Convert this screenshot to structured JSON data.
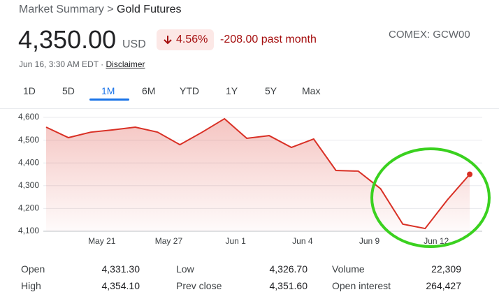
{
  "header": {
    "breadcrumb": [
      "Market Summary",
      ">",
      "Gold Futures"
    ],
    "price": "4,350.00",
    "currency": "USD",
    "change_percent": "4.56%",
    "change": "-208.00 past month",
    "exchange": "COMEX: GCW00",
    "timestamp": "Jun 16, 3:30 AM EDT ·",
    "disclaimer": "Disclaimer"
  },
  "tabs": {
    "items": [
      "1D",
      "5D",
      "1M",
      "6M",
      "YTD",
      "1Y",
      "5Y",
      "Max"
    ],
    "selected": 2
  },
  "chart_data": {
    "type": "line",
    "categories": [
      null,
      null,
      null,
      "May 21",
      null,
      null,
      "May 27",
      null,
      null,
      "Jun 1",
      null,
      null,
      "Jun 4",
      null,
      null,
      "Jun 9",
      null,
      null,
      "Jun 12",
      null
    ],
    "series": [
      {
        "color": "#d93025",
        "values": [
          4557,
          4511,
          4535,
          4545,
          4557,
          4535,
          4480,
          4535,
          4594,
          4508,
          4520,
          4468,
          4505,
          4367,
          4364,
          4287,
          4131,
          4112,
          4238,
          4350
        ]
      }
    ],
    "ylim": [
      4100,
      4600
    ],
    "yticks": [
      {
        "value": 4100,
        "label": "4,100"
      },
      {
        "value": 4200,
        "label": "4,200"
      },
      {
        "value": 4300,
        "label": "4,300"
      },
      {
        "value": 4400,
        "label": "4,400"
      },
      {
        "value": 4500,
        "label": "4,500"
      },
      {
        "value": 4600,
        "label": "4,600"
      }
    ],
    "grid": true
  },
  "stats": {
    "rows": [
      [
        "Open",
        "4,331.30",
        "Low",
        "4,326.70",
        "Volume",
        "22,309"
      ],
      [
        "High",
        "4,354.10",
        "Prev close",
        "4,351.60",
        "Open interest",
        "264,427"
      ]
    ]
  }
}
